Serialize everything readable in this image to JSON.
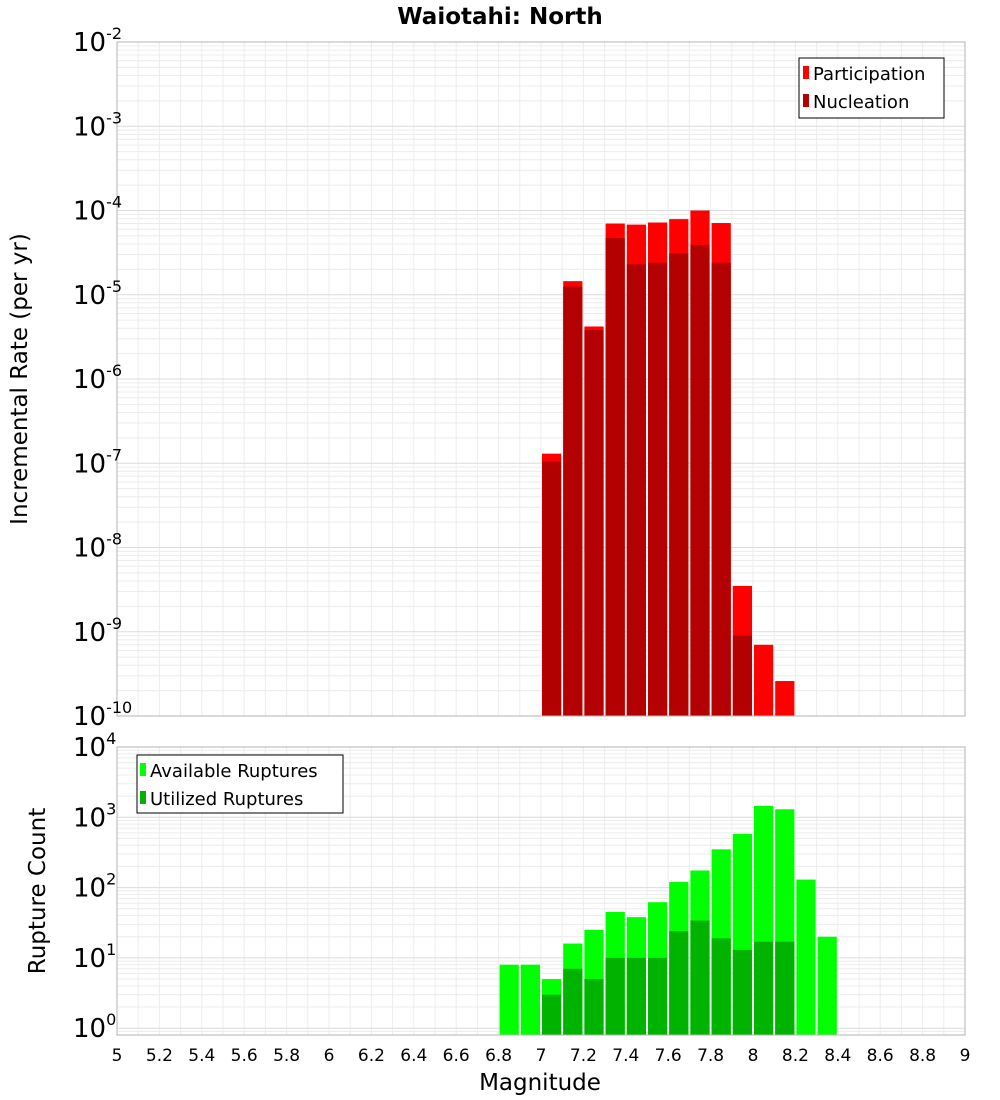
{
  "chart_data": [
    {
      "type": "bar",
      "title": "Waiotahi: North",
      "xlabel": "",
      "ylabel": "Incremental Rate (per yr)",
      "yscale": "log",
      "ylim": [
        1e-10,
        0.01
      ],
      "xlim": [
        5,
        9
      ],
      "bin_width": 0.1,
      "grid": true,
      "legend_position": "top-right",
      "ytick_labels": [
        {
          "base": "10",
          "exp": "-10",
          "value": 1e-10
        },
        {
          "base": "10",
          "exp": "-9",
          "value": 1e-09
        },
        {
          "base": "10",
          "exp": "-8",
          "value": 1e-08
        },
        {
          "base": "10",
          "exp": "-7",
          "value": 1e-07
        },
        {
          "base": "10",
          "exp": "-6",
          "value": 1e-06
        },
        {
          "base": "10",
          "exp": "-5",
          "value": 1e-05
        },
        {
          "base": "10",
          "exp": "-4",
          "value": 0.0001
        },
        {
          "base": "10",
          "exp": "-3",
          "value": 0.001
        },
        {
          "base": "10",
          "exp": "-2",
          "value": 0.01
        }
      ],
      "series": [
        {
          "name": "Participation",
          "color": "#ff0000",
          "points": [
            {
              "x": 7.05,
              "y": 1.3e-07
            },
            {
              "x": 7.15,
              "y": 1.45e-05
            },
            {
              "x": 7.25,
              "y": 4.2e-06
            },
            {
              "x": 7.35,
              "y": 7e-05
            },
            {
              "x": 7.45,
              "y": 6.8e-05
            },
            {
              "x": 7.55,
              "y": 7.2e-05
            },
            {
              "x": 7.65,
              "y": 7.9e-05
            },
            {
              "x": 7.75,
              "y": 0.0001
            },
            {
              "x": 7.85,
              "y": 7.1e-05
            },
            {
              "x": 7.95,
              "y": 3.5e-09
            },
            {
              "x": 8.05,
              "y": 7e-10
            },
            {
              "x": 8.15,
              "y": 2.6e-10
            }
          ]
        },
        {
          "name": "Nucleation",
          "color": "#b30000",
          "points": [
            {
              "x": 7.05,
              "y": 1.05e-07
            },
            {
              "x": 7.15,
              "y": 1.25e-05
            },
            {
              "x": 7.25,
              "y": 3.8e-06
            },
            {
              "x": 7.35,
              "y": 4.7e-05
            },
            {
              "x": 7.45,
              "y": 2.3e-05
            },
            {
              "x": 7.55,
              "y": 2.4e-05
            },
            {
              "x": 7.65,
              "y": 3.1e-05
            },
            {
              "x": 7.75,
              "y": 3.9e-05
            },
            {
              "x": 7.85,
              "y": 2.4e-05
            },
            {
              "x": 7.95,
              "y": 9e-10
            }
          ]
        }
      ]
    },
    {
      "type": "bar",
      "title": "",
      "xlabel": "Magnitude",
      "ylabel": "Rupture Count",
      "yscale": "log",
      "ylim": [
        0.8,
        10000
      ],
      "xlim": [
        5,
        9
      ],
      "bin_width": 0.1,
      "grid": true,
      "legend_position": "top-left",
      "xtick_labels": [
        "5",
        "5.2",
        "5.4",
        "5.6",
        "5.8",
        "6",
        "6.2",
        "6.4",
        "6.6",
        "6.8",
        "7",
        "7.2",
        "7.4",
        "7.6",
        "7.8",
        "8",
        "8.2",
        "8.4",
        "8.6",
        "8.8",
        "9"
      ],
      "ytick_labels": [
        {
          "base": "10",
          "exp": "0",
          "value": 1
        },
        {
          "base": "10",
          "exp": "1",
          "value": 10
        },
        {
          "base": "10",
          "exp": "2",
          "value": 100
        },
        {
          "base": "10",
          "exp": "3",
          "value": 1000
        },
        {
          "base": "10",
          "exp": "4",
          "value": 10000
        }
      ],
      "series": [
        {
          "name": "Available Ruptures",
          "color": "#00ff00",
          "points": [
            {
              "x": 6.85,
              "y": 8
            },
            {
              "x": 6.95,
              "y": 8
            },
            {
              "x": 7.05,
              "y": 5
            },
            {
              "x": 7.15,
              "y": 16
            },
            {
              "x": 7.25,
              "y": 25
            },
            {
              "x": 7.35,
              "y": 45
            },
            {
              "x": 7.45,
              "y": 38
            },
            {
              "x": 7.55,
              "y": 62
            },
            {
              "x": 7.65,
              "y": 120
            },
            {
              "x": 7.75,
              "y": 175
            },
            {
              "x": 7.85,
              "y": 350
            },
            {
              "x": 7.95,
              "y": 580
            },
            {
              "x": 8.05,
              "y": 1450
            },
            {
              "x": 8.15,
              "y": 1300
            },
            {
              "x": 8.25,
              "y": 130
            },
            {
              "x": 8.35,
              "y": 20
            }
          ]
        },
        {
          "name": "Utilized Ruptures",
          "color": "#00b300",
          "points": [
            {
              "x": 7.05,
              "y": 3
            },
            {
              "x": 7.15,
              "y": 7
            },
            {
              "x": 7.25,
              "y": 5
            },
            {
              "x": 7.35,
              "y": 10
            },
            {
              "x": 7.45,
              "y": 10
            },
            {
              "x": 7.55,
              "y": 10
            },
            {
              "x": 7.65,
              "y": 24
            },
            {
              "x": 7.75,
              "y": 34
            },
            {
              "x": 7.85,
              "y": 19
            },
            {
              "x": 7.95,
              "y": 13
            },
            {
              "x": 8.05,
              "y": 17
            },
            {
              "x": 8.15,
              "y": 17
            }
          ]
        }
      ]
    }
  ]
}
